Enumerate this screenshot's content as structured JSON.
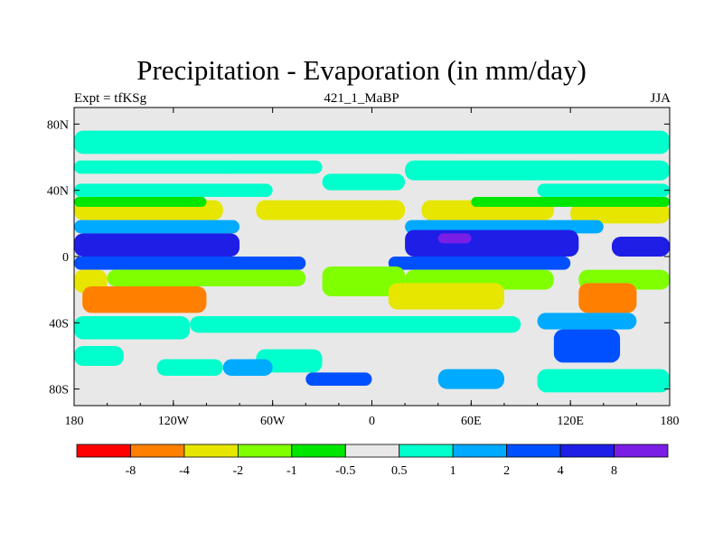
{
  "chart_data": {
    "type": "heatmap",
    "title": "Precipitation - Evaporation (in mm/day)",
    "subtitle_left": "Expt = tfKSg",
    "subtitle_center": "421_1_MaBP",
    "subtitle_right": "JJA",
    "xlim": [
      -180,
      180
    ],
    "ylim": [
      -90,
      90
    ],
    "x_ticks": [
      {
        "value": -180,
        "label": "180"
      },
      {
        "value": -120,
        "label": "120W"
      },
      {
        "value": -60,
        "label": "60W"
      },
      {
        "value": 0,
        "label": "0"
      },
      {
        "value": 60,
        "label": "60E"
      },
      {
        "value": 120,
        "label": "120E"
      },
      {
        "value": 180,
        "label": "180"
      }
    ],
    "y_ticks": [
      {
        "value": 80,
        "label": "80N"
      },
      {
        "value": 40,
        "label": "40N"
      },
      {
        "value": 0,
        "label": "0"
      },
      {
        "value": -40,
        "label": "40S"
      },
      {
        "value": -80,
        "label": "80S"
      }
    ],
    "levels": [
      "-8",
      "-4",
      "-2",
      "-1",
      "-0.5",
      "0.5",
      "1",
      "2",
      "4",
      "8"
    ],
    "colors": [
      "#ff0000",
      "#ff8000",
      "#e6e600",
      "#80ff00",
      "#00e600",
      "#e8e8e8",
      "#00ffcc",
      "#00aaff",
      "#0050ff",
      "#1e1ee6",
      "#7a1ee6"
    ],
    "background_class": 5,
    "regions": [
      {
        "lon": [
          -180,
          180
        ],
        "lat": [
          62,
          76
        ],
        "cls": 6
      },
      {
        "lon": [
          -180,
          -30
        ],
        "lat": [
          50,
          58
        ],
        "cls": 6
      },
      {
        "lon": [
          20,
          180
        ],
        "lat": [
          46,
          58
        ],
        "cls": 6
      },
      {
        "lon": [
          -30,
          20
        ],
        "lat": [
          40,
          50
        ],
        "cls": 6
      },
      {
        "lon": [
          -180,
          -60
        ],
        "lat": [
          36,
          44
        ],
        "cls": 6
      },
      {
        "lon": [
          100,
          180
        ],
        "lat": [
          36,
          44
        ],
        "cls": 6
      },
      {
        "lon": [
          -180,
          -90
        ],
        "lat": [
          22,
          34
        ],
        "cls": 2
      },
      {
        "lon": [
          -70,
          20
        ],
        "lat": [
          22,
          34
        ],
        "cls": 2
      },
      {
        "lon": [
          30,
          110
        ],
        "lat": [
          22,
          34
        ],
        "cls": 2
      },
      {
        "lon": [
          120,
          180
        ],
        "lat": [
          20,
          32
        ],
        "cls": 2
      },
      {
        "lon": [
          -180,
          -100
        ],
        "lat": [
          30,
          36
        ],
        "cls": 4
      },
      {
        "lon": [
          60,
          180
        ],
        "lat": [
          30,
          36
        ],
        "cls": 4
      },
      {
        "lon": [
          -180,
          -80
        ],
        "lat": [
          14,
          22
        ],
        "cls": 7
      },
      {
        "lon": [
          20,
          140
        ],
        "lat": [
          14,
          22
        ],
        "cls": 7
      },
      {
        "lon": [
          -180,
          -80
        ],
        "lat": [
          0,
          14
        ],
        "cls": 9
      },
      {
        "lon": [
          20,
          125
        ],
        "lat": [
          0,
          16
        ],
        "cls": 9
      },
      {
        "lon": [
          145,
          180
        ],
        "lat": [
          0,
          12
        ],
        "cls": 9
      },
      {
        "lon": [
          40,
          60
        ],
        "lat": [
          8,
          14
        ],
        "cls": 10
      },
      {
        "lon": [
          -180,
          -40
        ],
        "lat": [
          -8,
          0
        ],
        "cls": 8
      },
      {
        "lon": [
          10,
          120
        ],
        "lat": [
          -8,
          0
        ],
        "cls": 8
      },
      {
        "lon": [
          -180,
          -160
        ],
        "lat": [
          -22,
          -8
        ],
        "cls": 2
      },
      {
        "lon": [
          -160,
          -40
        ],
        "lat": [
          -18,
          -8
        ],
        "cls": 3
      },
      {
        "lon": [
          -30,
          20
        ],
        "lat": [
          -24,
          -6
        ],
        "cls": 3
      },
      {
        "lon": [
          20,
          110
        ],
        "lat": [
          -20,
          -8
        ],
        "cls": 3
      },
      {
        "lon": [
          125,
          180
        ],
        "lat": [
          -20,
          -8
        ],
        "cls": 3
      },
      {
        "lon": [
          -175,
          -100
        ],
        "lat": [
          -34,
          -18
        ],
        "cls": 1
      },
      {
        "lon": [
          10,
          80
        ],
        "lat": [
          -32,
          -16
        ],
        "cls": 2
      },
      {
        "lon": [
          -160,
          -140
        ],
        "lat": [
          -44,
          -36
        ],
        "cls": 3
      },
      {
        "lon": [
          125,
          160
        ],
        "lat": [
          -34,
          -16
        ],
        "cls": 1
      },
      {
        "lon": [
          -180,
          -110
        ],
        "lat": [
          -50,
          -36
        ],
        "cls": 6
      },
      {
        "lon": [
          -110,
          90
        ],
        "lat": [
          -46,
          -36
        ],
        "cls": 6
      },
      {
        "lon": [
          100,
          160
        ],
        "lat": [
          -44,
          -34
        ],
        "cls": 7
      },
      {
        "lon": [
          110,
          150
        ],
        "lat": [
          -64,
          -44
        ],
        "cls": 8
      },
      {
        "lon": [
          -180,
          -150
        ],
        "lat": [
          -66,
          -54
        ],
        "cls": 6
      },
      {
        "lon": [
          -130,
          -90
        ],
        "lat": [
          -72,
          -62
        ],
        "cls": 6
      },
      {
        "lon": [
          -70,
          -30
        ],
        "lat": [
          -70,
          -56
        ],
        "cls": 6
      },
      {
        "lon": [
          -90,
          -60
        ],
        "lat": [
          -72,
          -62
        ],
        "cls": 7
      },
      {
        "lon": [
          40,
          80
        ],
        "lat": [
          -80,
          -68
        ],
        "cls": 7
      },
      {
        "lon": [
          -40,
          0
        ],
        "lat": [
          -78,
          -70
        ],
        "cls": 8
      },
      {
        "lon": [
          100,
          180
        ],
        "lat": [
          -82,
          -68
        ],
        "cls": 6
      }
    ]
  }
}
